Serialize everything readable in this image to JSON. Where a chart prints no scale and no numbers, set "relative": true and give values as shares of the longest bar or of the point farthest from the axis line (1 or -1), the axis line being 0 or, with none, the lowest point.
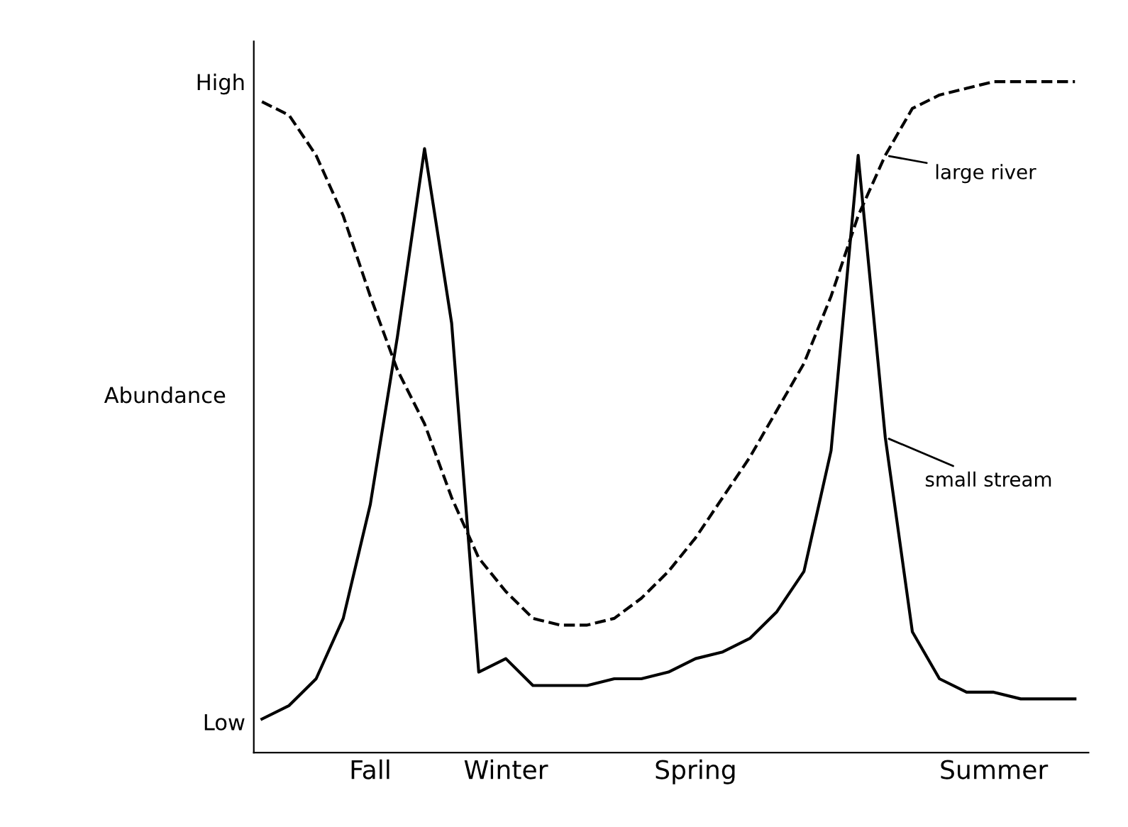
{
  "chart_data": {
    "type": "line",
    "ylabel": "Abundance",
    "relative": true,
    "categories": [
      null,
      null,
      null,
      null,
      "Fall",
      null,
      null,
      null,
      null,
      "Winter",
      null,
      null,
      null,
      null,
      null,
      null,
      "Spring",
      null,
      null,
      null,
      null,
      null,
      null,
      null,
      null,
      null,
      null,
      "Summer",
      null,
      null,
      null
    ],
    "grid": false,
    "marker": "none",
    "series": [
      {
        "name": "small stream",
        "color": "#000000",
        "line_style": "solid",
        "values": [
          0.05,
          0.07,
          0.11,
          0.2,
          0.37,
          0.62,
          0.9,
          0.64,
          0.12,
          0.14,
          0.1,
          0.1,
          0.1,
          0.11,
          0.11,
          0.12,
          0.14,
          0.15,
          0.17,
          0.21,
          0.27,
          0.45,
          0.89,
          0.47,
          0.18,
          0.11,
          0.09,
          0.09,
          0.08,
          0.08,
          0.08
        ]
      },
      {
        "name": "large river",
        "color": "#000000",
        "line_style": "dashed",
        "values": [
          0.97,
          0.95,
          0.89,
          0.8,
          0.68,
          0.57,
          0.49,
          0.38,
          0.29,
          0.24,
          0.2,
          0.19,
          0.19,
          0.2,
          0.23,
          0.27,
          0.32,
          0.38,
          0.44,
          0.51,
          0.58,
          0.68,
          0.8,
          0.89,
          0.96,
          0.98,
          0.99,
          1.0,
          1.0,
          1.0,
          1.0
        ]
      }
    ],
    "annotations": [
      "High",
      "Low"
    ]
  }
}
